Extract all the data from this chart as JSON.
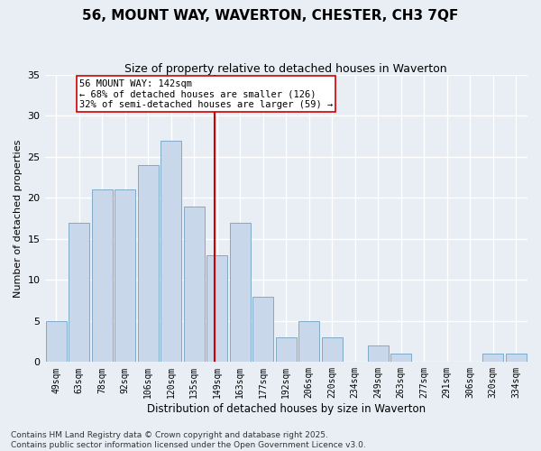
{
  "title": "56, MOUNT WAY, WAVERTON, CHESTER, CH3 7QF",
  "subtitle": "Size of property relative to detached houses in Waverton",
  "xlabel": "Distribution of detached houses by size in Waverton",
  "ylabel": "Number of detached properties",
  "bar_labels": [
    "49sqm",
    "63sqm",
    "78sqm",
    "92sqm",
    "106sqm",
    "120sqm",
    "135sqm",
    "149sqm",
    "163sqm",
    "177sqm",
    "192sqm",
    "206sqm",
    "220sqm",
    "234sqm",
    "249sqm",
    "263sqm",
    "277sqm",
    "291sqm",
    "306sqm",
    "320sqm",
    "334sqm"
  ],
  "bar_values": [
    5,
    17,
    21,
    21,
    24,
    27,
    19,
    13,
    17,
    8,
    3,
    5,
    3,
    0,
    2,
    1,
    0,
    0,
    0,
    1,
    1
  ],
  "bar_face_color": "#c8d8ea",
  "bar_edge_color": "#7faac8",
  "vline_color": "#cc0000",
  "annotation_text": "56 MOUNT WAY: 142sqm\n← 68% of detached houses are smaller (126)\n32% of semi-detached houses are larger (59) →",
  "annotation_box_color": "#ffffff",
  "annotation_box_edge": "#cc0000",
  "ylim": [
    0,
    35
  ],
  "yticks": [
    0,
    5,
    10,
    15,
    20,
    25,
    30,
    35
  ],
  "background_color": "#e8eef4",
  "grid_color": "#ffffff",
  "footer": "Contains HM Land Registry data © Crown copyright and database right 2025.\nContains public sector information licensed under the Open Government Licence v3.0.",
  "title_fontsize": 11,
  "subtitle_fontsize": 9,
  "xlabel_fontsize": 8.5,
  "ylabel_fontsize": 8,
  "tick_fontsize": 7,
  "annotation_fontsize": 7.5,
  "footer_fontsize": 6.5
}
